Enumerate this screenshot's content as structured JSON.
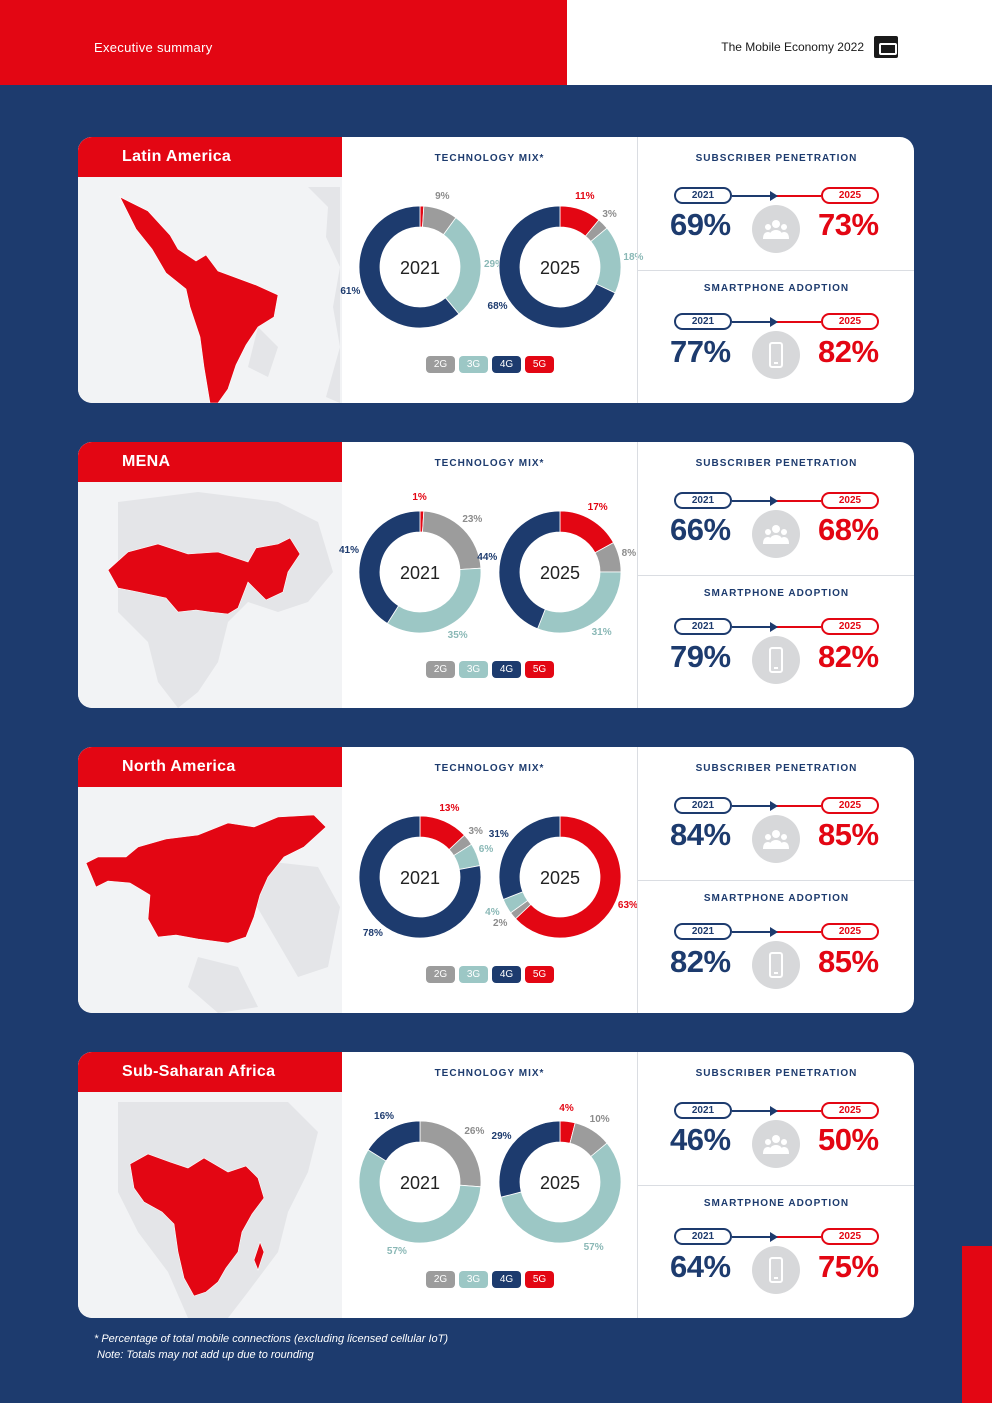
{
  "header": {
    "section": "Executive summary",
    "document_title": "The Mobile Economy 2022",
    "logo_icon": "gsma-logo-icon"
  },
  "labels": {
    "technology_mix": "TECHNOLOGY MIX*",
    "subscriber_penetration": "SUBSCRIBER PENETRATION",
    "smartphone_adoption": "SMARTPHONE ADOPTION",
    "year_a": "2021",
    "year_b": "2025",
    "legend": [
      "2G",
      "3G",
      "4G",
      "5G"
    ]
  },
  "colors": {
    "2G": "#9c9c9c",
    "3G": "#9cc7c5",
    "4G": "#1d3b6e",
    "5G": "#e30613"
  },
  "regions": [
    {
      "name": "Latin America",
      "tech_mix": {
        "2021": {
          "2G": 9,
          "3G": 29,
          "4G": 61,
          "5G": 1
        },
        "2025": {
          "2G": 3,
          "3G": 18,
          "4G": 68,
          "5G": 11
        }
      },
      "tech_labels": {
        "2021": {
          "2G": "9%",
          "3G": "29%",
          "4G": "61%",
          "5G": ""
        },
        "2025": {
          "2G": "3%",
          "3G": "18%",
          "4G": "68%",
          "5G": "11%"
        }
      },
      "subscriber_penetration": {
        "2021": "69%",
        "2025": "73%"
      },
      "smartphone_adoption": {
        "2021": "77%",
        "2025": "82%"
      }
    },
    {
      "name": "MENA",
      "tech_mix": {
        "2021": {
          "2G": 23,
          "3G": 35,
          "4G": 41,
          "5G": 1
        },
        "2025": {
          "2G": 8,
          "3G": 31,
          "4G": 44,
          "5G": 17
        }
      },
      "tech_labels": {
        "2021": {
          "2G": "23%",
          "3G": "35%",
          "4G": "41%",
          "5G": "1%"
        },
        "2025": {
          "2G": "8%",
          "3G": "31%",
          "4G": "44%",
          "5G": "17%"
        }
      },
      "subscriber_penetration": {
        "2021": "66%",
        "2025": "68%"
      },
      "smartphone_adoption": {
        "2021": "79%",
        "2025": "82%"
      }
    },
    {
      "name": "North America",
      "tech_mix": {
        "2021": {
          "2G": 3,
          "3G": 6,
          "4G": 78,
          "5G": 13
        },
        "2025": {
          "2G": 2,
          "3G": 4,
          "4G": 31,
          "5G": 63
        }
      },
      "tech_labels": {
        "2021": {
          "2G": "3%",
          "3G": "6%",
          "4G": "78%",
          "5G": "13%"
        },
        "2025": {
          "2G": "2%",
          "3G": "4%",
          "4G": "31%",
          "5G": "63%"
        }
      },
      "subscriber_penetration": {
        "2021": "84%",
        "2025": "85%"
      },
      "smartphone_adoption": {
        "2021": "82%",
        "2025": "85%"
      }
    },
    {
      "name": "Sub-Saharan Africa",
      "tech_mix": {
        "2021": {
          "2G": 26,
          "3G": 57,
          "4G": 16,
          "5G": 0
        },
        "2025": {
          "2G": 10,
          "3G": 57,
          "4G": 29,
          "5G": 4
        }
      },
      "tech_labels": {
        "2021": {
          "2G": "26%",
          "3G": "57%",
          "4G": "16%",
          "5G": ""
        },
        "2025": {
          "2G": "10%",
          "3G": "57%",
          "4G": "29%",
          "5G": "4%"
        }
      },
      "subscriber_penetration": {
        "2021": "46%",
        "2025": "50%"
      },
      "smartphone_adoption": {
        "2021": "64%",
        "2025": "75%"
      }
    }
  ],
  "chart_data": [
    {
      "type": "pie",
      "title": "Latin America 2021",
      "categories": [
        "2G",
        "3G",
        "4G",
        "5G"
      ],
      "values": [
        9,
        29,
        61,
        1
      ]
    },
    {
      "type": "pie",
      "title": "Latin America 2025",
      "categories": [
        "2G",
        "3G",
        "4G",
        "5G"
      ],
      "values": [
        3,
        18,
        68,
        11
      ]
    },
    {
      "type": "pie",
      "title": "MENA 2021",
      "categories": [
        "2G",
        "3G",
        "4G",
        "5G"
      ],
      "values": [
        23,
        35,
        41,
        1
      ]
    },
    {
      "type": "pie",
      "title": "MENA 2025",
      "categories": [
        "2G",
        "3G",
        "4G",
        "5G"
      ],
      "values": [
        8,
        31,
        44,
        17
      ]
    },
    {
      "type": "pie",
      "title": "North America 2021",
      "categories": [
        "2G",
        "3G",
        "4G",
        "5G"
      ],
      "values": [
        3,
        6,
        78,
        13
      ]
    },
    {
      "type": "pie",
      "title": "North America 2025",
      "categories": [
        "2G",
        "3G",
        "4G",
        "5G"
      ],
      "values": [
        2,
        4,
        31,
        63
      ]
    },
    {
      "type": "pie",
      "title": "Sub-Saharan Africa 2021",
      "categories": [
        "2G",
        "3G",
        "4G",
        "5G"
      ],
      "values": [
        26,
        57,
        16,
        0
      ]
    },
    {
      "type": "pie",
      "title": "Sub-Saharan Africa 2025",
      "categories": [
        "2G",
        "3G",
        "4G",
        "5G"
      ],
      "values": [
        10,
        57,
        29,
        4
      ]
    }
  ],
  "footnotes": [
    "* Percentage of total mobile connections (excluding licensed cellular IoT)",
    "Note: Totals may not add up due to rounding"
  ]
}
